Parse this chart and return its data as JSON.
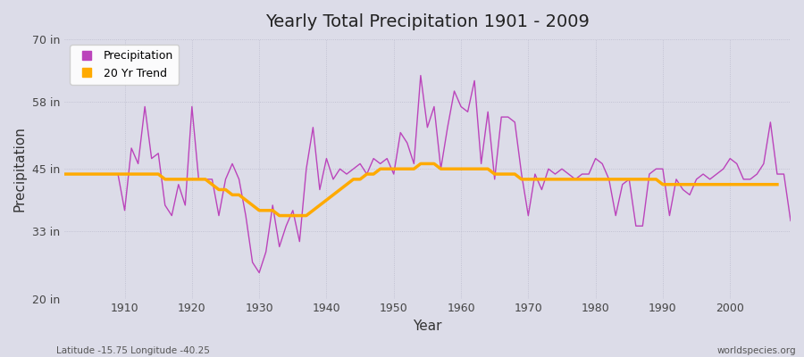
{
  "title": "Yearly Total Precipitation 1901 - 2009",
  "xlabel": "Year",
  "ylabel": "Precipitation",
  "xlim": [
    1901,
    2009
  ],
  "ylim": [
    20,
    70
  ],
  "yticks": [
    20,
    33,
    45,
    58,
    70
  ],
  "ytick_labels": [
    "20 in",
    "33 in",
    "45 in",
    "58 in",
    "70 in"
  ],
  "xticks": [
    1910,
    1920,
    1930,
    1940,
    1950,
    1960,
    1970,
    1980,
    1990,
    2000
  ],
  "background_color": "#dcdce8",
  "plot_background": "#dcdce8",
  "precip_color": "#bb44bb",
  "trend_color": "#ffaa00",
  "footer_left": "Latitude -15.75 Longitude -40.25",
  "footer_right": "worldspecies.org",
  "years": [
    1901,
    1902,
    1903,
    1904,
    1905,
    1906,
    1907,
    1908,
    1909,
    1910,
    1911,
    1912,
    1913,
    1914,
    1915,
    1916,
    1917,
    1918,
    1919,
    1920,
    1921,
    1922,
    1923,
    1924,
    1925,
    1926,
    1927,
    1928,
    1929,
    1930,
    1931,
    1932,
    1933,
    1934,
    1935,
    1936,
    1937,
    1938,
    1939,
    1940,
    1941,
    1942,
    1943,
    1944,
    1945,
    1946,
    1947,
    1948,
    1949,
    1950,
    1951,
    1952,
    1953,
    1954,
    1955,
    1956,
    1957,
    1958,
    1959,
    1960,
    1961,
    1962,
    1963,
    1964,
    1965,
    1966,
    1967,
    1968,
    1969,
    1970,
    1971,
    1972,
    1973,
    1974,
    1975,
    1976,
    1977,
    1978,
    1979,
    1980,
    1981,
    1982,
    1983,
    1984,
    1985,
    1986,
    1987,
    1988,
    1989,
    1990,
    1991,
    1992,
    1993,
    1994,
    1995,
    1996,
    1997,
    1998,
    1999,
    2000,
    2001,
    2002,
    2003,
    2004,
    2005,
    2006,
    2007,
    2008,
    2009
  ],
  "precip": [
    44,
    44,
    44,
    44,
    44,
    44,
    44,
    44,
    44,
    37,
    49,
    46,
    57,
    47,
    48,
    38,
    36,
    42,
    38,
    57,
    43,
    43,
    43,
    36,
    43,
    46,
    43,
    36,
    27,
    25,
    29,
    38,
    30,
    34,
    37,
    31,
    45,
    53,
    41,
    47,
    43,
    45,
    44,
    45,
    46,
    44,
    47,
    46,
    47,
    44,
    52,
    50,
    46,
    63,
    53,
    57,
    45,
    53,
    60,
    57,
    56,
    62,
    46,
    56,
    43,
    55,
    55,
    54,
    44,
    36,
    44,
    41,
    45,
    44,
    45,
    44,
    43,
    44,
    44,
    47,
    46,
    43,
    36,
    42,
    43,
    34,
    34,
    44,
    45,
    45,
    36,
    43,
    41,
    40,
    43,
    44,
    43,
    44,
    45,
    47,
    46,
    43,
    43,
    44,
    46,
    54,
    44,
    44,
    35
  ],
  "trend": [
    44,
    44,
    44,
    44,
    44,
    44,
    44,
    44,
    44,
    44,
    44,
    44,
    44,
    44,
    44,
    43,
    43,
    43,
    43,
    43,
    43,
    43,
    42,
    41,
    41,
    40,
    40,
    39,
    38,
    37,
    37,
    37,
    36,
    36,
    36,
    36,
    36,
    37,
    38,
    39,
    40,
    41,
    42,
    43,
    43,
    44,
    44,
    45,
    45,
    45,
    45,
    45,
    45,
    46,
    46,
    46,
    45,
    45,
    45,
    45,
    45,
    45,
    45,
    45,
    44,
    44,
    44,
    44,
    43,
    43,
    43,
    43,
    43,
    43,
    43,
    43,
    43,
    43,
    43,
    43,
    43,
    43,
    43,
    43,
    43,
    43,
    43,
    43,
    43,
    42,
    42,
    42,
    42,
    42,
    42,
    42,
    42,
    42,
    42,
    42,
    42,
    42,
    42,
    42,
    42,
    42,
    42,
    null,
    null
  ]
}
